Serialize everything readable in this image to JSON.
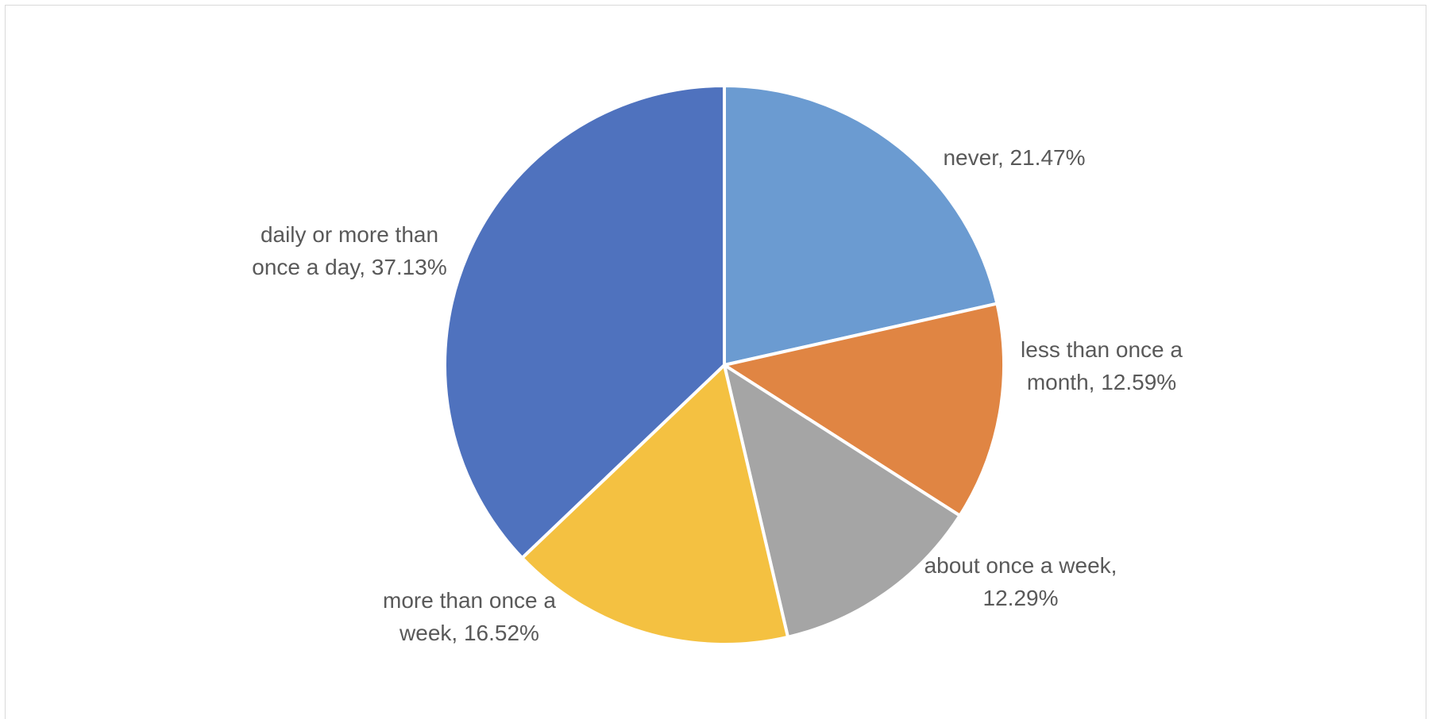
{
  "chart_data": {
    "type": "pie",
    "title": "",
    "categories": [
      "never",
      "less than once a month",
      "about once a week",
      "more than once a week",
      "daily or more than once a day"
    ],
    "values": [
      21.47,
      12.59,
      12.29,
      16.52,
      37.13
    ],
    "unit": "%",
    "colors": [
      "#6b9bd1",
      "#e08543",
      "#a5a5a5",
      "#f4c141",
      "#4f72be"
    ],
    "labels": [
      {
        "lines": [
          "never, 21.47%"
        ]
      },
      {
        "lines": [
          "less than once a",
          "month, 12.59%"
        ]
      },
      {
        "lines": [
          "about once a week,",
          "12.29%"
        ]
      },
      {
        "lines": [
          "more than once a",
          "week, 16.52%"
        ]
      },
      {
        "lines": [
          "daily or more than",
          "once a day, 37.13%"
        ]
      }
    ],
    "start_angle": "12 o'clock",
    "direction": "clockwise",
    "legend": "none"
  }
}
